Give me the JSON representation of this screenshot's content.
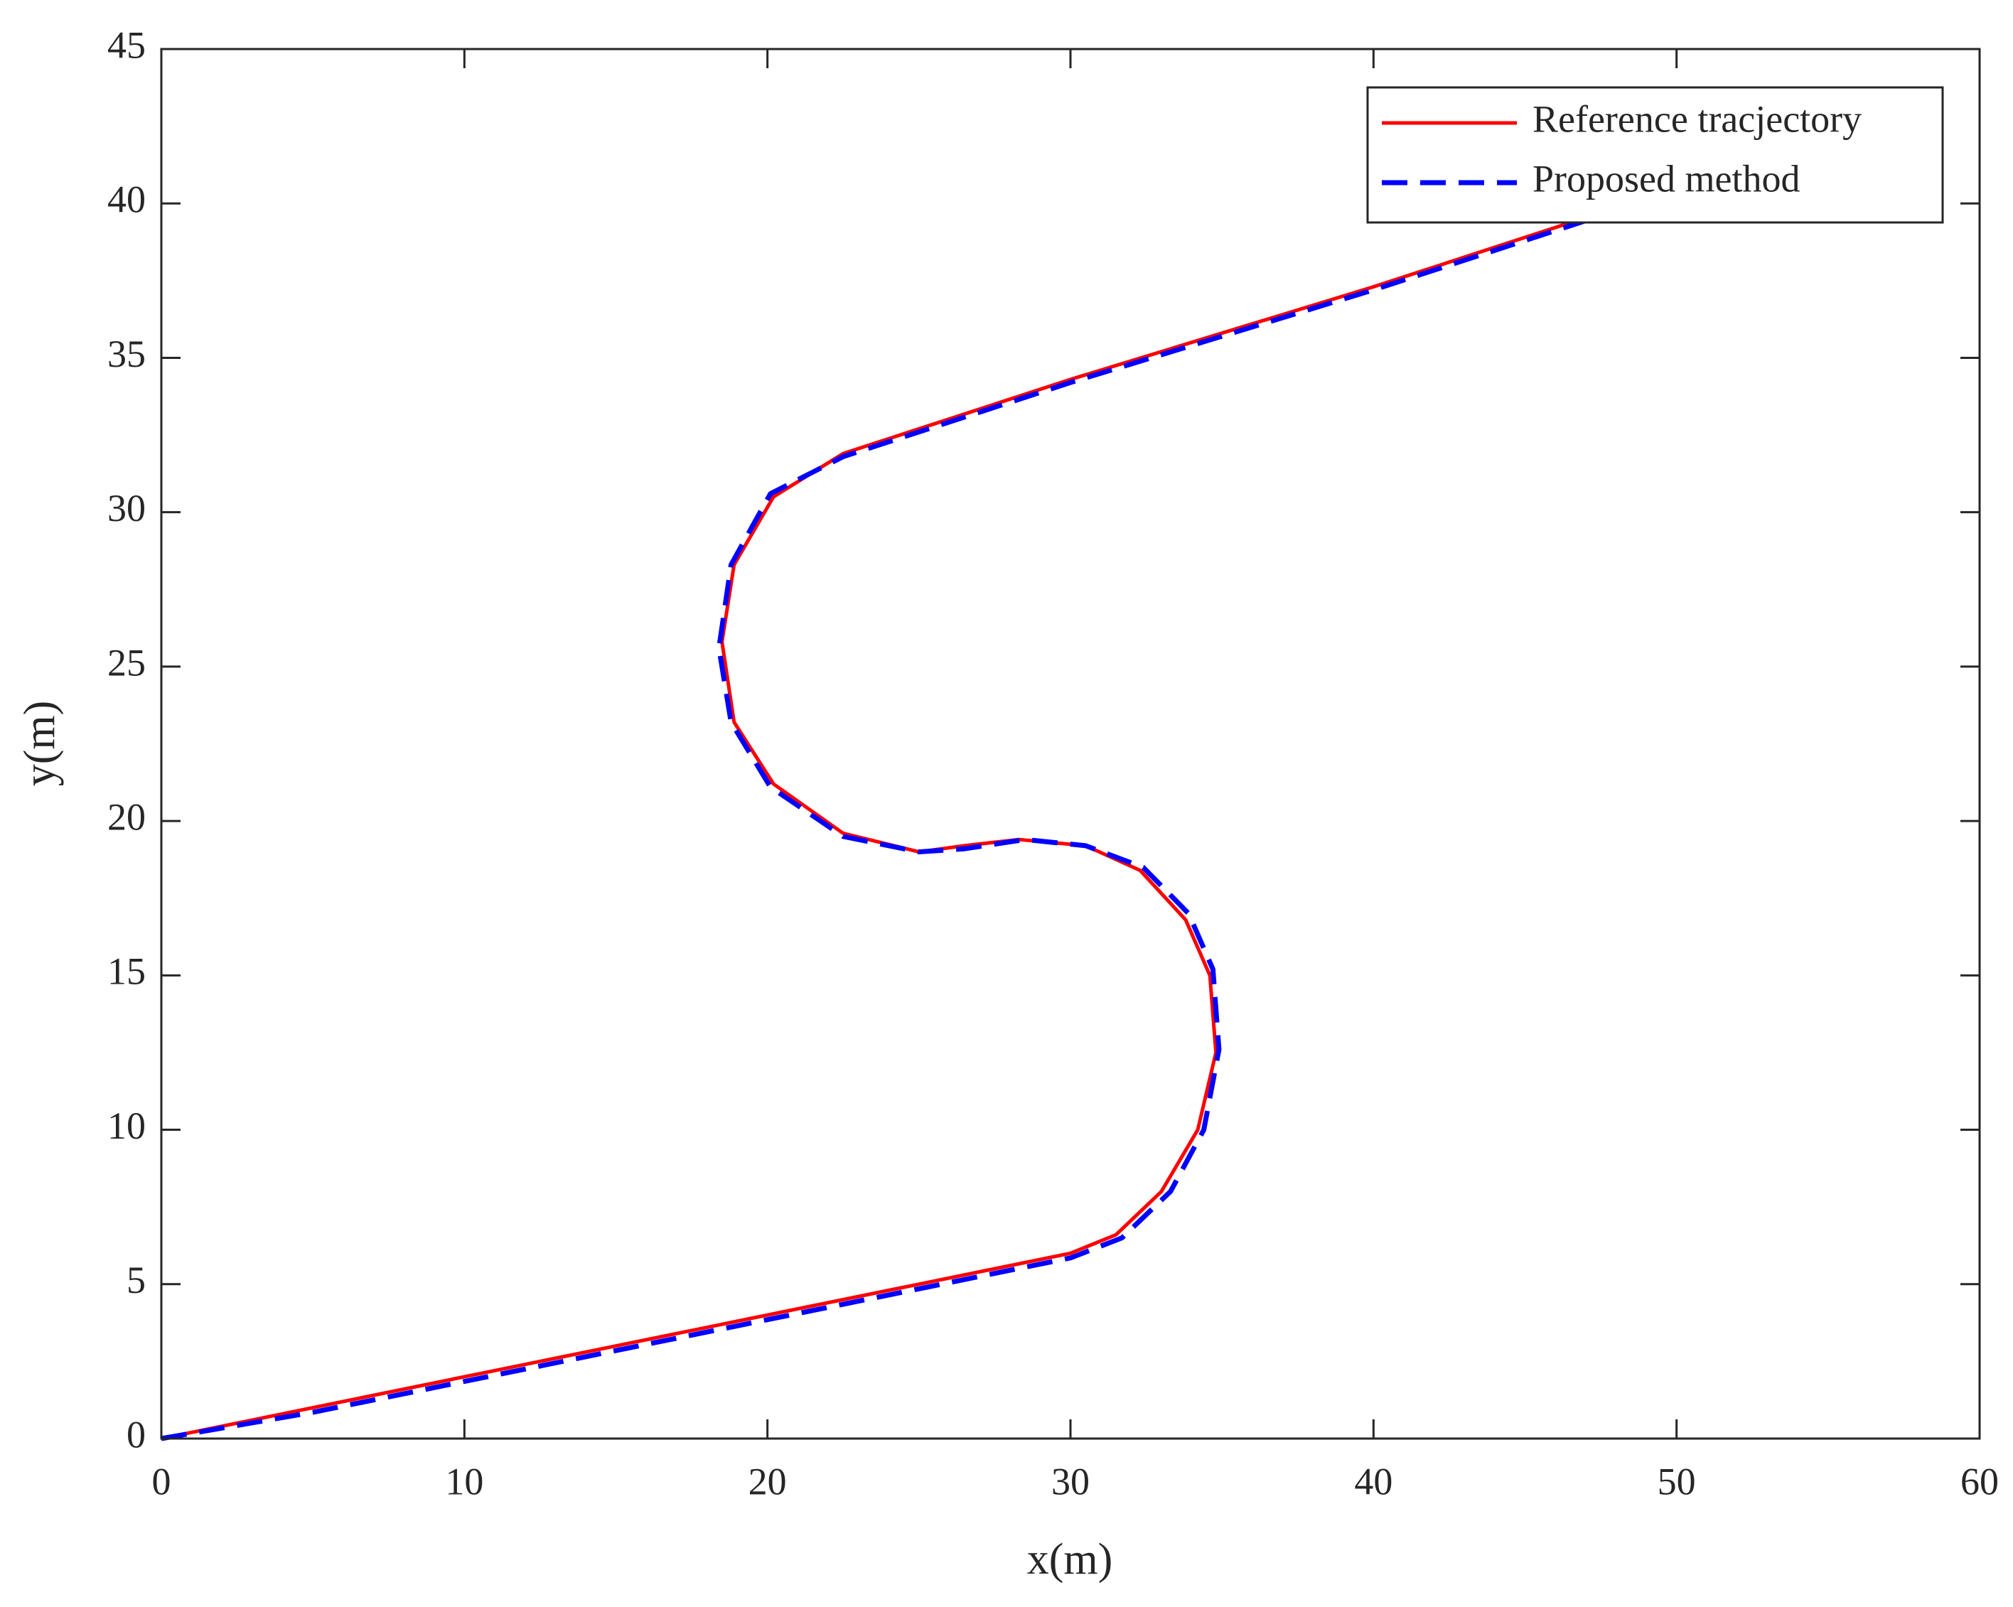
{
  "chart_data": {
    "type": "line",
    "xlabel": "x(m)",
    "ylabel": "y(m)",
    "xlim": [
      0,
      60
    ],
    "ylim": [
      0,
      45
    ],
    "xticks": [
      0,
      10,
      20,
      30,
      40,
      50,
      60
    ],
    "yticks": [
      0,
      5,
      10,
      15,
      20,
      25,
      30,
      35,
      40,
      45
    ],
    "legend": "upper right",
    "series": [
      {
        "name": "Reference tracjectory",
        "color": "#ff0000",
        "linestyle": "solid",
        "x": [
          0,
          5,
          10,
          15,
          20,
          25,
          30,
          31.5,
          33,
          34.2,
          34.8,
          34.6,
          33.8,
          32.3,
          30.5,
          28.3,
          26.5,
          25,
          22.5,
          20.2,
          18.9,
          18.5,
          18.9,
          20.2,
          22.5,
          30,
          40,
          47.5
        ],
        "values": [
          0,
          1,
          2,
          3,
          4,
          5,
          6,
          6.6,
          8,
          10,
          12.5,
          15,
          16.8,
          18.4,
          19.2,
          19.4,
          19.2,
          19,
          19.6,
          21.2,
          23.2,
          25.8,
          28.3,
          30.5,
          31.9,
          34.3,
          37.3,
          39.7
        ]
      },
      {
        "name": "Proposed method",
        "color": "#0000ff",
        "linestyle": "dashed",
        "x": [
          0,
          5,
          10,
          15,
          20,
          25,
          30,
          31.7,
          33.3,
          34.4,
          34.9,
          34.7,
          33.9,
          32.4,
          30.5,
          28.5,
          26.5,
          25,
          22.5,
          20.1,
          18.8,
          18.4,
          18.8,
          20.1,
          22.5,
          30,
          40,
          47.5
        ],
        "values": [
          0,
          0.85,
          1.85,
          2.85,
          3.85,
          4.85,
          5.85,
          6.5,
          8,
          10,
          12.6,
          15.2,
          17,
          18.5,
          19.2,
          19.4,
          19.1,
          19,
          19.5,
          21.1,
          23.2,
          25.6,
          28.3,
          30.6,
          31.8,
          34.2,
          37.2,
          39.6
        ]
      }
    ]
  }
}
